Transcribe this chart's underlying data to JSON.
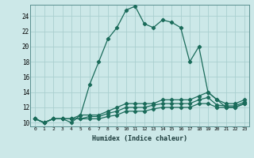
{
  "xlabel": "Humidex (Indice chaleur)",
  "bg_color": "#cce8e8",
  "line_color": "#1a6b5a",
  "grid_color": "#aacfcf",
  "xlim": [
    -0.5,
    23.5
  ],
  "ylim": [
    9.5,
    25.5
  ],
  "xticks": [
    0,
    1,
    2,
    3,
    4,
    5,
    6,
    7,
    8,
    9,
    10,
    11,
    12,
    13,
    14,
    15,
    16,
    17,
    18,
    19,
    20,
    21,
    22,
    23
  ],
  "yticks": [
    10,
    12,
    14,
    16,
    18,
    20,
    22,
    24
  ],
  "series1_x": [
    0,
    1,
    2,
    3,
    4,
    5,
    6,
    7,
    8,
    9,
    10,
    11,
    12,
    13,
    14,
    15,
    16,
    17,
    18,
    19,
    20,
    21,
    22,
    23
  ],
  "series1_y": [
    10.5,
    10.0,
    10.5,
    10.5,
    10.0,
    11.0,
    15.0,
    18.0,
    21.0,
    22.5,
    24.8,
    25.3,
    23.0,
    22.5,
    23.5,
    23.2,
    22.5,
    18.0,
    20.0,
    14.0,
    13.0,
    12.0,
    12.0,
    12.5
  ],
  "series2_x": [
    0,
    1,
    2,
    3,
    4,
    5,
    6,
    7,
    8,
    9,
    10,
    11,
    12,
    13,
    14,
    15,
    16,
    17,
    18,
    19,
    20,
    21,
    22,
    23
  ],
  "series2_y": [
    10.5,
    10.0,
    10.5,
    10.5,
    10.5,
    11.0,
    11.0,
    11.0,
    11.5,
    12.0,
    12.5,
    12.5,
    12.5,
    12.5,
    13.0,
    13.0,
    13.0,
    13.0,
    13.5,
    14.0,
    13.0,
    12.5,
    12.5,
    13.0
  ],
  "series3_x": [
    0,
    1,
    2,
    3,
    4,
    5,
    6,
    7,
    8,
    9,
    10,
    11,
    12,
    13,
    14,
    15,
    16,
    17,
    18,
    19,
    20,
    21,
    22,
    23
  ],
  "series3_y": [
    10.5,
    10.0,
    10.5,
    10.5,
    10.5,
    10.5,
    10.8,
    10.8,
    11.2,
    11.5,
    12.0,
    12.0,
    12.0,
    12.3,
    12.5,
    12.5,
    12.5,
    12.5,
    13.0,
    13.3,
    12.3,
    12.2,
    12.2,
    12.7
  ],
  "series4_x": [
    0,
    1,
    2,
    3,
    4,
    5,
    6,
    7,
    8,
    9,
    10,
    11,
    12,
    13,
    14,
    15,
    16,
    17,
    18,
    19,
    20,
    21,
    22,
    23
  ],
  "series4_y": [
    10.5,
    10.0,
    10.5,
    10.5,
    10.5,
    10.5,
    10.5,
    10.5,
    10.8,
    11.0,
    11.5,
    11.5,
    11.5,
    11.8,
    12.0,
    12.0,
    12.0,
    12.0,
    12.5,
    12.5,
    12.0,
    12.0,
    12.0,
    12.5
  ]
}
